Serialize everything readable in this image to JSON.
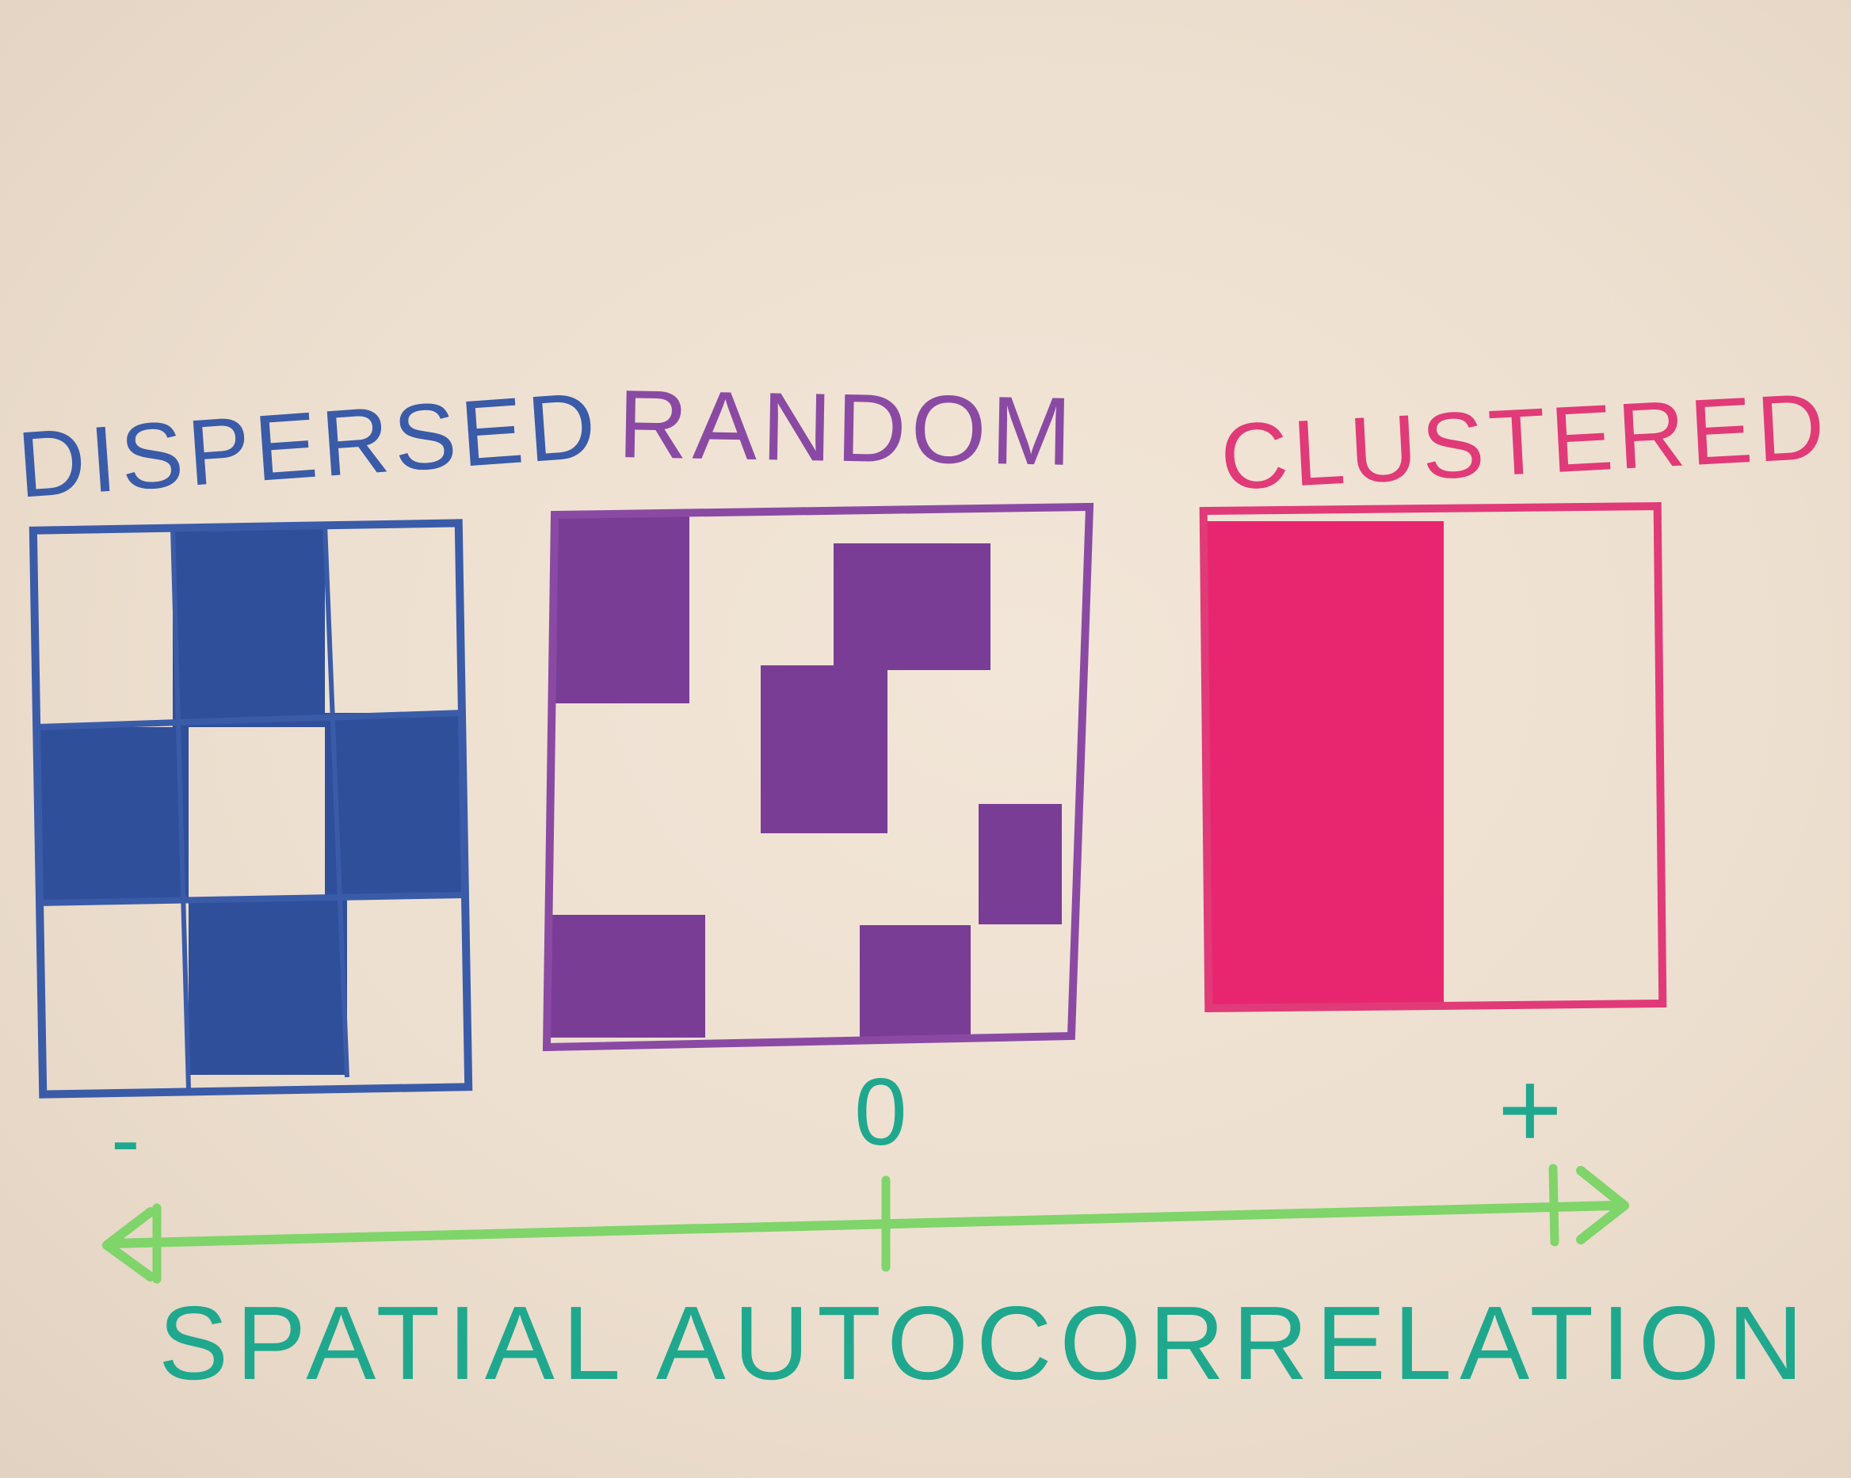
{
  "title": "SPATIAL AUTOCORRELATION",
  "panels": [
    {
      "label": "DISPERSED",
      "color": "#2f4f9a",
      "pattern": "checkerboard"
    },
    {
      "label": "RANDOM",
      "color": "#7a3d96",
      "pattern": "random"
    },
    {
      "label": "CLUSTERED",
      "color": "#e8266f",
      "pattern": "clustered"
    }
  ],
  "scale": {
    "negative": "-",
    "zero": "0",
    "positive": "+",
    "color": "#7fd46a"
  }
}
